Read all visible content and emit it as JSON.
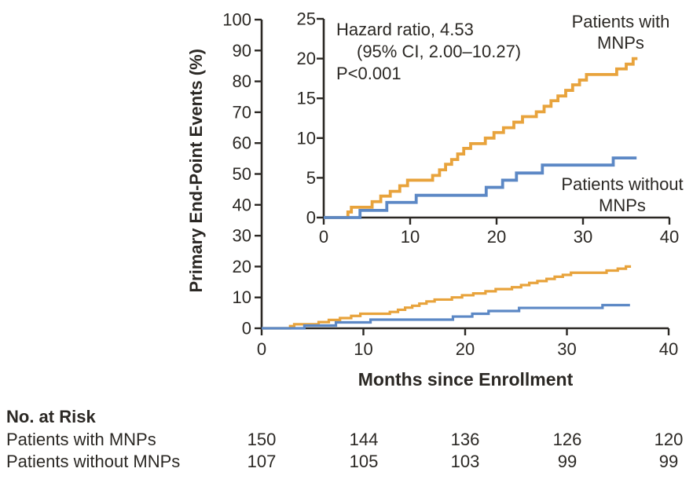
{
  "chart": {
    "y_axis_title": "Primary End-Point Events (%)",
    "x_axis_title": "Months since Enrollment",
    "annotation": {
      "line1": "Hazard ratio, 4.53",
      "line2": "(95% CI, 2.00–10.27)",
      "line3": "P<0.001"
    },
    "labels": {
      "with_line1": "Patients with",
      "with_line2": "MNPs",
      "without_line1": "Patients without",
      "without_line2": "MNPs"
    }
  },
  "chart_data": {
    "type": "line",
    "subtype": "cumulative-incidence-step-curves-with-inset",
    "title": "",
    "xlabel": "Months since Enrollment",
    "ylabel": "Primary End-Point Events (%)",
    "xlim": [
      0,
      40
    ],
    "x_ticks": [
      0,
      10,
      20,
      30,
      40
    ],
    "main_ylim": [
      0,
      100
    ],
    "main_yticks": [
      0,
      10,
      20,
      30,
      40,
      50,
      60,
      70,
      80,
      90,
      100
    ],
    "inset_ylim": [
      0,
      25
    ],
    "inset_yticks": [
      0,
      5,
      10,
      15,
      20,
      25
    ],
    "grid": false,
    "legend_position": "curve-end-labels",
    "annotation_text": "Hazard ratio, 4.53 (95% CI, 2.00–10.27) P<0.001",
    "series": [
      {
        "name": "Patients with MNPs",
        "color": "#E8A33C",
        "end_month": 36.3,
        "final_pct": 20.0,
        "steps": [
          [
            2.8,
            0.7
          ],
          [
            3.2,
            1.3
          ],
          [
            5.6,
            2.0
          ],
          [
            6.6,
            2.7
          ],
          [
            7.7,
            3.3
          ],
          [
            8.8,
            4.0
          ],
          [
            9.7,
            4.7
          ],
          [
            12.6,
            5.3
          ],
          [
            13.4,
            6.0
          ],
          [
            14.1,
            6.7
          ],
          [
            14.8,
            7.3
          ],
          [
            15.5,
            8.0
          ],
          [
            16.2,
            8.7
          ],
          [
            17.0,
            9.3
          ],
          [
            18.7,
            10.0
          ],
          [
            19.7,
            10.7
          ],
          [
            20.8,
            11.3
          ],
          [
            22.0,
            12.0
          ],
          [
            23.0,
            12.7
          ],
          [
            24.6,
            13.3
          ],
          [
            25.5,
            14.0
          ],
          [
            26.3,
            14.7
          ],
          [
            27.1,
            15.3
          ],
          [
            28.0,
            16.0
          ],
          [
            28.8,
            16.7
          ],
          [
            29.6,
            17.3
          ],
          [
            30.4,
            18.0
          ],
          [
            33.9,
            18.7
          ],
          [
            35.0,
            19.3
          ],
          [
            35.8,
            20.0
          ]
        ]
      },
      {
        "name": "Patients without MNPs",
        "color": "#5C88C5",
        "end_month": 36.2,
        "final_pct": 7.5,
        "steps": [
          [
            4.2,
            0.9
          ],
          [
            7.3,
            1.9
          ],
          [
            10.7,
            2.8
          ],
          [
            18.8,
            3.8
          ],
          [
            20.7,
            4.7
          ],
          [
            22.3,
            5.6
          ],
          [
            25.3,
            6.6
          ],
          [
            33.5,
            7.5
          ]
        ]
      }
    ]
  },
  "risk_table": {
    "title": "No. at Risk",
    "columns_months": [
      0,
      10,
      20,
      30,
      40
    ],
    "rows": [
      {
        "label": "Patients with MNPs",
        "values": [
          "150",
          "144",
          "136",
          "126",
          "120"
        ]
      },
      {
        "label": "Patients without MNPs",
        "values": [
          "107",
          "105",
          "103",
          "99",
          "99"
        ]
      }
    ]
  }
}
